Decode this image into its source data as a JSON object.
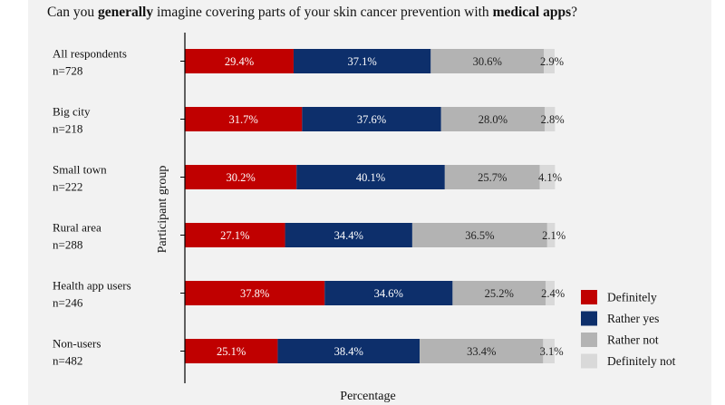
{
  "chart_data": {
    "type": "bar",
    "orientation": "horizontal",
    "stacked": true,
    "title": {
      "prefix": "Can you ",
      "bold1": "generally",
      "middle": " imagine covering parts of your skin cancer prevention with ",
      "bold2": "medical apps",
      "suffix": "?"
    },
    "xlabel": "Percentage",
    "ylabel": "Participant group",
    "xlim": [
      0,
      100
    ],
    "categories": [
      {
        "name": "All respondents",
        "n": "n=728"
      },
      {
        "name": "Big city",
        "n": "n=218"
      },
      {
        "name": "Small town",
        "n": "n=222"
      },
      {
        "name": "Rural area",
        "n": "n=288"
      },
      {
        "name": "Health app users",
        "n": "n=246"
      },
      {
        "name": "Non-users",
        "n": "n=482"
      }
    ],
    "series": [
      {
        "name": "Definitely",
        "color": "#c00000",
        "values": [
          29.4,
          31.7,
          30.2,
          27.1,
          37.8,
          25.1
        ],
        "labels": [
          "29.4%",
          "31.7%",
          "30.2%",
          "27.1%",
          "37.8%",
          "25.1%"
        ]
      },
      {
        "name": "Rather yes",
        "color": "#0d2f6b",
        "values": [
          37.1,
          37.6,
          40.1,
          34.4,
          34.6,
          38.4
        ],
        "labels": [
          "37.1%",
          "37.6%",
          "40.1%",
          "34.4%",
          "34.6%",
          "38.4%"
        ]
      },
      {
        "name": "Rather not",
        "color": "#b3b3b3",
        "values": [
          30.6,
          28.0,
          25.7,
          36.5,
          25.2,
          33.4
        ],
        "labels": [
          "30.6%",
          "28.0%",
          "25.7%",
          "36.5%",
          "25.2%",
          "33.4%"
        ]
      },
      {
        "name": "Definitely not",
        "color": "#d9d9d9",
        "values": [
          2.9,
          2.8,
          4.1,
          2.1,
          2.4,
          3.1
        ],
        "labels": [
          "2.9%",
          "2.8%",
          "4.1%",
          "2.1%",
          "2.4%",
          "3.1%"
        ]
      }
    ],
    "legend_position": "bottom-right"
  }
}
